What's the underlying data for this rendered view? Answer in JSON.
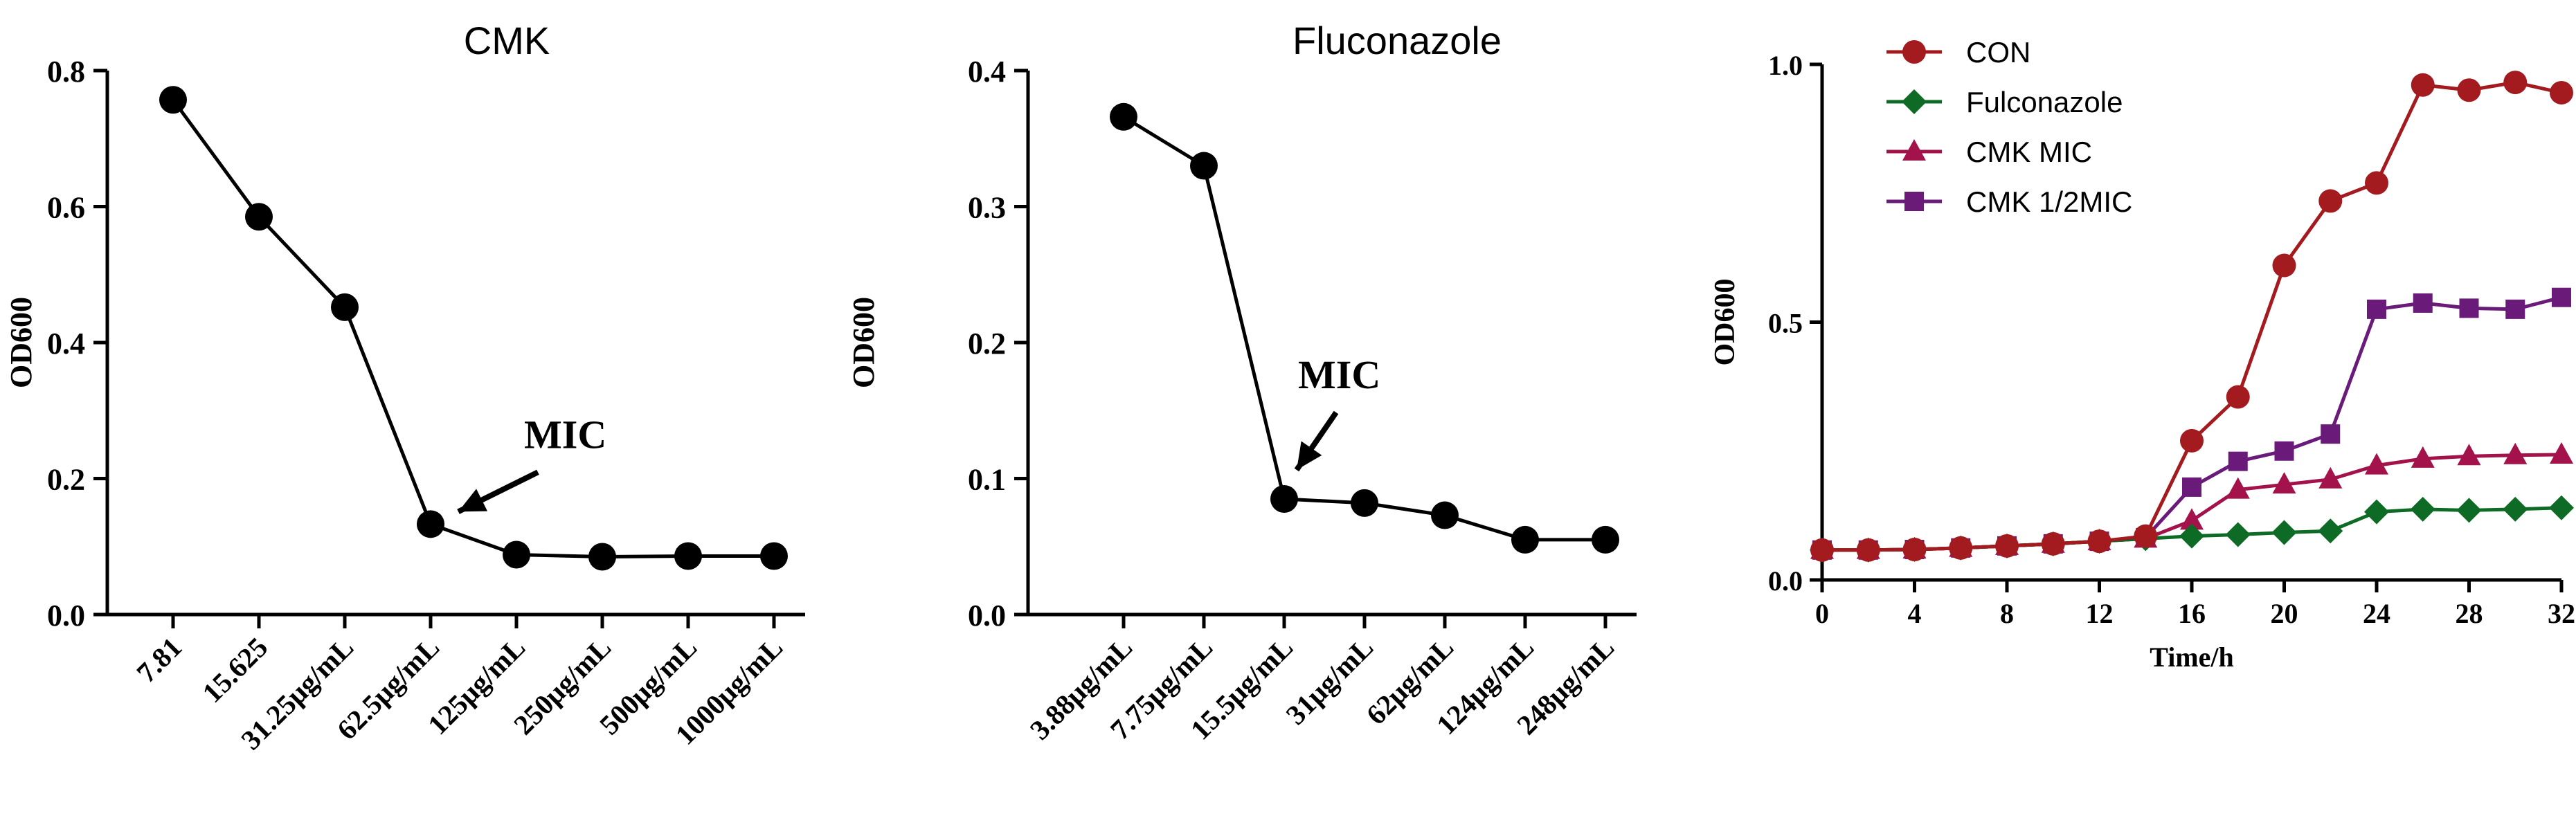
{
  "chart_data": [
    {
      "type": "line",
      "title": "CMK",
      "xlabel": "",
      "ylabel": "OD600",
      "categories": [
        "7.81",
        "15.625",
        "31.25μg/mL",
        "62.5μg/mL",
        "125μg/mL",
        "250μg/mL",
        "500μg/mL",
        "1000μg/mL"
      ],
      "series": [
        {
          "values": [
            0.757,
            0.585,
            0.452,
            0.133,
            0.088,
            0.085,
            0.086,
            0.086
          ]
        }
      ],
      "ylim": [
        0,
        0.8
      ],
      "yticks": [
        "0.0",
        "0.2",
        "0.4",
        "0.6",
        "0.8"
      ],
      "annotation": {
        "text": "MIC",
        "category_index": 3
      },
      "color": "#000000",
      "grid": false
    },
    {
      "type": "line",
      "title": "Fluconazole",
      "xlabel": "",
      "ylabel": "OD600",
      "categories": [
        "3.88μg/mL",
        "7.75μg/mL",
        "15.5μg/mL",
        "31μg/mL",
        "62μg/mL",
        "124μg/mL",
        "248μg/mL"
      ],
      "series": [
        {
          "values": [
            0.366,
            0.33,
            0.085,
            0.082,
            0.073,
            0.055,
            0.055
          ]
        }
      ],
      "ylim": [
        0,
        0.4
      ],
      "yticks": [
        "0.0",
        "0.1",
        "0.2",
        "0.3",
        "0.4"
      ],
      "annotation": {
        "text": "MIC",
        "category_index": 2
      },
      "color": "#000000",
      "grid": false
    },
    {
      "type": "line",
      "title": "",
      "xlabel": "Time/h",
      "ylabel": "OD600",
      "x": [
        0,
        2,
        4,
        6,
        8,
        10,
        12,
        14,
        16,
        18,
        20,
        22,
        24,
        26,
        28,
        30,
        32
      ],
      "xticks": [
        "0",
        "4",
        "8",
        "12",
        "16",
        "20",
        "24",
        "28",
        "32"
      ],
      "xlim": [
        0,
        32
      ],
      "ylim": [
        0,
        1.0
      ],
      "yticks": [
        "0.0",
        "0.5",
        "1.0"
      ],
      "legend_position": "top-left",
      "grid": false,
      "series": [
        {
          "name": "CON",
          "color": "#a31a1f",
          "marker": "circle",
          "values": [
            0.058,
            0.058,
            0.059,
            0.062,
            0.066,
            0.07,
            0.075,
            0.085,
            0.27,
            0.355,
            0.61,
            0.735,
            0.77,
            0.96,
            0.95,
            0.965,
            0.945
          ]
        },
        {
          "name": "Fulconazole",
          "color": "#0e6b25",
          "marker": "diamond",
          "values": [
            0.058,
            0.058,
            0.059,
            0.062,
            0.066,
            0.07,
            0.075,
            0.08,
            0.085,
            0.088,
            0.092,
            0.095,
            0.132,
            0.137,
            0.135,
            0.137,
            0.14
          ]
        },
        {
          "name": "CMK MIC",
          "color": "#a3124a",
          "marker": "triangle",
          "values": [
            0.058,
            0.058,
            0.059,
            0.062,
            0.066,
            0.07,
            0.075,
            0.08,
            0.115,
            0.175,
            0.185,
            0.195,
            0.222,
            0.235,
            0.24,
            0.242,
            0.243
          ]
        },
        {
          "name": "CMK 1/2MIC",
          "color": "#6a1b7a",
          "marker": "square",
          "values": [
            0.058,
            0.058,
            0.059,
            0.062,
            0.066,
            0.07,
            0.075,
            0.082,
            0.18,
            0.23,
            0.25,
            0.283,
            0.525,
            0.537,
            0.527,
            0.525,
            0.548
          ]
        }
      ]
    }
  ]
}
